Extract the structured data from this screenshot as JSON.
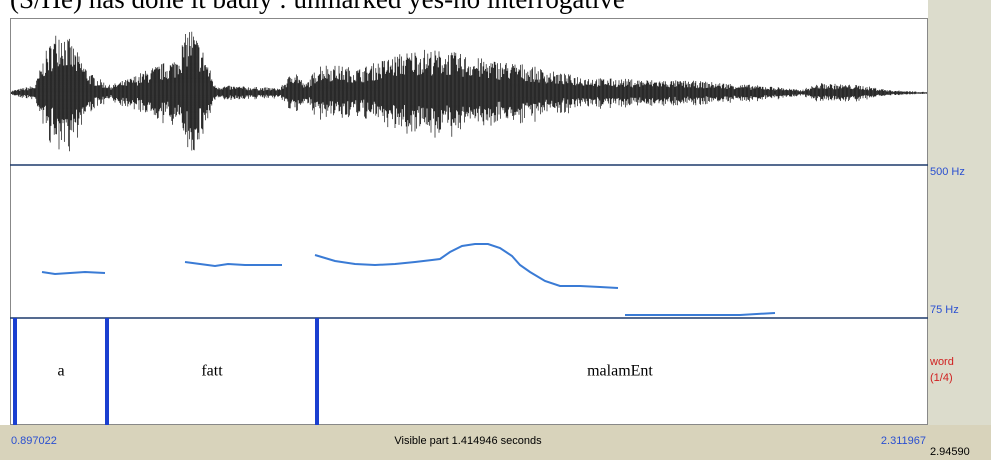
{
  "header": {
    "title": "(S/He) has done it badly : unmarked yes-no interrogative"
  },
  "pitch": {
    "top_label": "500 Hz",
    "bottom_label": "75 Hz"
  },
  "tier": {
    "name": "word",
    "count": "(1/4)",
    "intervals": [
      "a",
      "fatt",
      "malamEnt"
    ]
  },
  "footer": {
    "start": "0.897022",
    "visible": "Visible part 1.414946 seconds",
    "end": "2.311967",
    "total": "2.94590"
  }
}
